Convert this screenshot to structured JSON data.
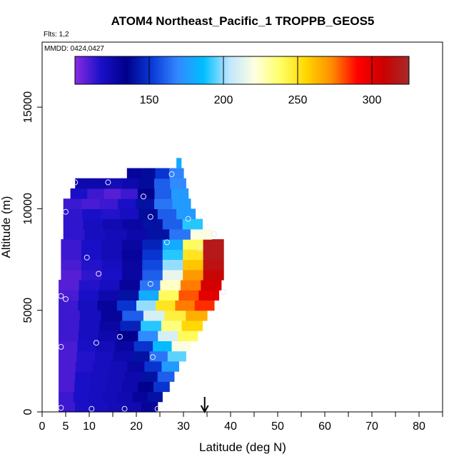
{
  "chart_data": {
    "type": "heatmap",
    "title": "ATOM4 Northeast_Pacific_1 TROPPB_GEOS5",
    "annotations": [
      "Flts: 1,2",
      "MMDD: 0424,0427"
    ],
    "xlabel": "Latitude (deg N)",
    "ylabel": "Altitude (m)",
    "xlim": [
      0,
      85
    ],
    "ylim": [
      0,
      17500
    ],
    "xticks": [
      0,
      5,
      10,
      20,
      30,
      40,
      50,
      60,
      70,
      80
    ],
    "xticklabels": [
      "0",
      "5",
      "10",
      "20",
      "30",
      "40",
      "50",
      "60",
      "70",
      "80"
    ],
    "yticks": [
      0,
      5000,
      10000,
      15000
    ],
    "yticklabels": [
      "0",
      "5000",
      "10000",
      "15000"
    ],
    "colorbar": {
      "range": [
        100,
        325
      ],
      "ticks": [
        150,
        200,
        250,
        300
      ],
      "ticklabels": [
        "150",
        "200",
        "250",
        "300"
      ],
      "colors": [
        "#8a2be2",
        "#1a10c8",
        "#00008b",
        "#0a3ad8",
        "#3388ff",
        "#00bfff",
        "#bfe6ff",
        "#ffffe0",
        "#ffff66",
        "#ffd700",
        "#ff8c00",
        "#ff0000",
        "#cc0000",
        "#a52a2a"
      ]
    },
    "grid": false,
    "marker_latitude": 34.5,
    "field": [
      {
        "z0": 0,
        "z1": 500,
        "x0": 3.5,
        "x1": 24.5,
        "vals": [
          112,
          118,
          120,
          122,
          124,
          130
        ]
      },
      {
        "z0": 500,
        "z1": 1000,
        "x0": 3.5,
        "x1": 25.5,
        "vals": [
          112,
          118,
          120,
          122,
          124,
          130,
          140
        ]
      },
      {
        "z0": 1000,
        "z1": 1500,
        "x0": 3.5,
        "x1": 27,
        "vals": [
          110,
          118,
          120,
          122,
          125,
          135,
          150
        ]
      },
      {
        "z0": 1500,
        "z1": 2000,
        "x0": 3.5,
        "x1": 28,
        "vals": [
          110,
          118,
          120,
          122,
          125,
          140,
          160
        ]
      },
      {
        "z0": 2000,
        "z1": 2500,
        "x0": 3.5,
        "x1": 29,
        "vals": [
          110,
          116,
          120,
          122,
          128,
          150,
          175
        ]
      },
      {
        "z0": 2500,
        "z1": 3000,
        "x0": 3.5,
        "x1": 30.5,
        "vals": [
          110,
          116,
          120,
          125,
          140,
          165,
          195
        ]
      },
      {
        "z0": 3000,
        "z1": 3500,
        "x0": 3.5,
        "x1": 31.5,
        "vals": [
          110,
          118,
          122,
          128,
          150,
          185,
          220
        ]
      },
      {
        "z0": 3500,
        "z1": 4000,
        "x0": 3.5,
        "x1": 33,
        "vals": [
          112,
          120,
          125,
          135,
          170,
          210,
          240
        ]
      },
      {
        "z0": 4000,
        "z1": 4500,
        "x0": 3.5,
        "x1": 34,
        "vals": [
          112,
          120,
          128,
          145,
          190,
          235,
          255
        ]
      },
      {
        "z0": 4500,
        "z1": 5000,
        "x0": 3.5,
        "x1": 35,
        "vals": [
          112,
          120,
          130,
          160,
          210,
          245,
          265
        ]
      },
      {
        "z0": 5000,
        "z1": 5500,
        "x0": 3.5,
        "x1": 36.5,
        "vals": [
          112,
          120,
          130,
          150,
          200,
          250,
          275,
          285
        ]
      },
      {
        "z0": 5500,
        "z1": 6000,
        "x0": 3.5,
        "x1": 37.5,
        "vals": [
          110,
          118,
          125,
          140,
          180,
          240,
          280,
          300
        ]
      },
      {
        "z0": 6000,
        "z1": 6500,
        "x0": 3.5,
        "x1": 38,
        "vals": [
          108,
          116,
          120,
          130,
          165,
          225,
          275,
          305
        ]
      },
      {
        "z0": 6500,
        "z1": 7000,
        "x0": 4,
        "x1": 38.5,
        "vals": [
          108,
          114,
          118,
          128,
          160,
          215,
          270,
          310
        ]
      },
      {
        "z0": 7000,
        "z1": 7500,
        "x0": 4,
        "x1": 38.5,
        "vals": [
          110,
          116,
          120,
          128,
          155,
          200,
          260,
          315
        ]
      },
      {
        "z0": 7500,
        "z1": 8000,
        "x0": 4,
        "x1": 38.5,
        "vals": [
          112,
          118,
          122,
          130,
          150,
          190,
          250,
          318
        ]
      },
      {
        "z0": 8000,
        "z1": 8500,
        "x0": 4,
        "x1": 38.5,
        "vals": [
          112,
          118,
          122,
          128,
          145,
          180,
          240,
          318
        ]
      },
      {
        "z0": 8500,
        "z1": 9000,
        "x0": 4.5,
        "x1": 36,
        "vals": [
          114,
          120,
          122,
          126,
          140,
          165,
          220
        ]
      },
      {
        "z0": 9000,
        "z1": 9500,
        "x0": 4.5,
        "x1": 34,
        "vals": [
          114,
          120,
          124,
          128,
          140,
          160,
          190
        ]
      },
      {
        "z0": 9500,
        "z1": 10000,
        "x0": 4.5,
        "x1": 32.5,
        "vals": [
          114,
          118,
          116,
          120,
          138,
          160,
          175
        ]
      },
      {
        "z0": 10000,
        "z1": 10500,
        "x0": 4.5,
        "x1": 31.5,
        "vals": [
          112,
          110,
          112,
          118,
          140,
          165,
          175
        ]
      },
      {
        "z0": 10500,
        "z1": 11000,
        "x0": 6,
        "x1": 31,
        "vals": [
          118,
          112,
          108,
          112,
          135,
          160,
          175
        ]
      },
      {
        "z0": 11000,
        "z1": 11500,
        "x0": 7,
        "x1": 30.5,
        "vals": [
          125,
          125,
          122,
          125,
          138,
          160,
          170
        ]
      },
      {
        "z0": 11500,
        "z1": 12000,
        "x0": 18,
        "x1": 30,
        "vals": [
          130,
          138,
          150,
          168
        ]
      },
      {
        "z0": 12000,
        "z1": 12500,
        "x0": 28.5,
        "x1": 29.5,
        "vals": [
          180
        ]
      }
    ],
    "points": [
      {
        "lat": 4,
        "alt": 200
      },
      {
        "lat": 10.5,
        "alt": 150
      },
      {
        "lat": 17.5,
        "alt": 150
      },
      {
        "lat": 24.5,
        "alt": 150
      },
      {
        "lat": 4,
        "alt": 3200
      },
      {
        "lat": 11.5,
        "alt": 3400
      },
      {
        "lat": 16.5,
        "alt": 3700
      },
      {
        "lat": 23.5,
        "alt": 2700
      },
      {
        "lat": 4,
        "alt": 5700
      },
      {
        "lat": 5,
        "alt": 5550
      },
      {
        "lat": 12,
        "alt": 6800
      },
      {
        "lat": 23,
        "alt": 6300
      },
      {
        "lat": 38.5,
        "alt": 5900
      },
      {
        "lat": 9.5,
        "alt": 7600
      },
      {
        "lat": 33.5,
        "alt": 8050
      },
      {
        "lat": 26.5,
        "alt": 8350
      },
      {
        "lat": 36.5,
        "alt": 8750
      },
      {
        "lat": 5,
        "alt": 9850
      },
      {
        "lat": 23,
        "alt": 9600
      },
      {
        "lat": 31,
        "alt": 9500
      },
      {
        "lat": 21.5,
        "alt": 10600
      },
      {
        "lat": 7,
        "alt": 11300
      },
      {
        "lat": 14,
        "alt": 11300
      },
      {
        "lat": 27.5,
        "alt": 11700
      }
    ]
  }
}
